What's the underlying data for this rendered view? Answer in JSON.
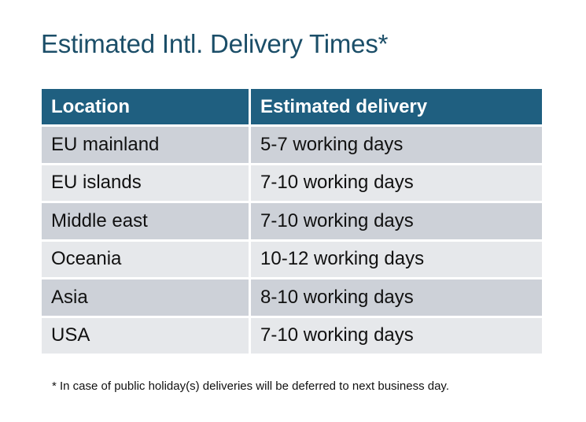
{
  "title": "Estimated Intl. Delivery Times*",
  "colors": {
    "header_bg": "#1f5f80",
    "title": "#1b4e68",
    "row_odd": "#cdd1d8",
    "row_even": "#e6e8eb"
  },
  "table": {
    "headers": [
      "Location",
      "Estimated delivery"
    ],
    "rows": [
      [
        "EU mainland",
        "5-7 working days"
      ],
      [
        "EU islands",
        "7-10 working days"
      ],
      [
        "Middle east",
        "7-10 working days"
      ],
      [
        "Oceania",
        "10-12 working days"
      ],
      [
        "Asia",
        "8-10 working days"
      ],
      [
        "USA",
        "7-10 working days"
      ]
    ]
  },
  "footnote": "* In case of public holiday(s) deliveries will be deferred to next business day."
}
